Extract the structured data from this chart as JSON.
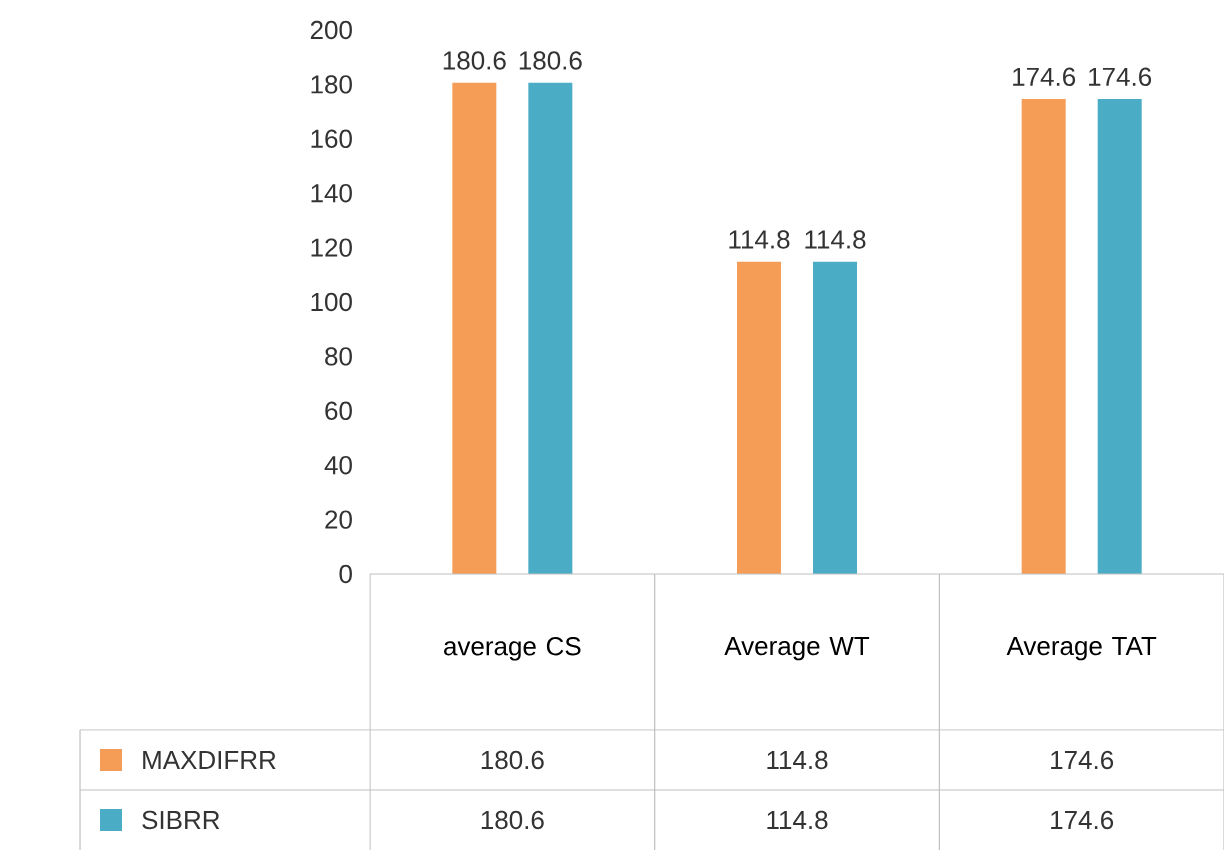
{
  "chart_data": {
    "type": "bar",
    "categories": [
      "average CS",
      "Average WT",
      "Average TAT"
    ],
    "series": [
      {
        "name": "MAXDIFRR",
        "color": "#f59d56",
        "values": [
          180.6,
          114.8,
          174.6
        ],
        "value_labels": [
          "180.6",
          "114.8",
          "174.6"
        ]
      },
      {
        "name": "SIBRR",
        "color": "#4bacc6",
        "values": [
          180.6,
          114.8,
          174.6
        ],
        "value_labels": [
          "180.6",
          "114.8",
          "174.6"
        ]
      }
    ],
    "ylim": [
      0,
      200
    ],
    "yticks": [
      0,
      20,
      40,
      60,
      80,
      100,
      120,
      140,
      160,
      180,
      200
    ],
    "legend": "bottom left"
  }
}
